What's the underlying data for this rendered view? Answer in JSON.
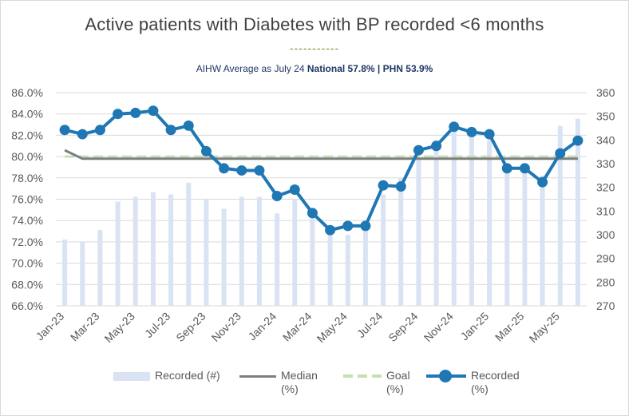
{
  "title": "Active patients with Diabetes with BP recorded <6 months",
  "title_dash": "-----------",
  "subtitle": {
    "prefix": "AIHW Average as July 24 ",
    "national": "National 57.8%",
    "separator": " | ",
    "phn": "PHN 53.9%"
  },
  "legend": {
    "recorded_count": "Recorded (#)",
    "median_line1": "Median",
    "median_line2": "(%)",
    "goal_line1": "Goal",
    "goal_line2": "(%)",
    "recorded_pct_line1": "Recorded",
    "recorded_pct_line2": "(%)"
  },
  "colors": {
    "bar": "#dae3f3",
    "median": "#7f7f7f",
    "goal": "#c5e0b4",
    "recorded": "#1f77b4",
    "grid": "#d9d9d9",
    "axis_text": "#595959"
  },
  "chart_data": {
    "type": "bar+line",
    "title": "Active patients with Diabetes with BP recorded <6 months",
    "x": [
      "Jan-23",
      "Feb-23",
      "Mar-23",
      "Apr-23",
      "May-23",
      "Jun-23",
      "Jul-23",
      "Aug-23",
      "Sep-23",
      "Oct-23",
      "Nov-23",
      "Dec-23",
      "Jan-24",
      "Feb-24",
      "Mar-24",
      "Apr-24",
      "May-24",
      "Jun-24",
      "Jul-24",
      "Aug-24",
      "Sep-24",
      "Oct-24",
      "Nov-24",
      "Dec-24",
      "Jan-25",
      "Feb-25",
      "Mar-25",
      "Apr-25",
      "May-25",
      "Jun-25"
    ],
    "x_tick_labels": [
      "Jan-23",
      "Mar-23",
      "May-23",
      "Jul-23",
      "Sep-23",
      "Nov-23",
      "Jan-24",
      "Mar-24",
      "May-24",
      "Jul-24",
      "Sep-24",
      "Nov-24",
      "Jan-25",
      "Mar-25",
      "May-25"
    ],
    "y_left": {
      "min": 66,
      "max": 86,
      "step": 2,
      "format": "percent1",
      "ticks": [
        "66.0%",
        "68.0%",
        "70.0%",
        "72.0%",
        "74.0%",
        "76.0%",
        "78.0%",
        "80.0%",
        "82.0%",
        "84.0%",
        "86.0%"
      ]
    },
    "y_right": {
      "min": 270,
      "max": 360,
      "step": 10,
      "ticks": [
        "270",
        "280",
        "290",
        "300",
        "310",
        "320",
        "330",
        "340",
        "350",
        "360"
      ]
    },
    "grid": true,
    "legend_position": "bottom",
    "series": [
      {
        "name": "Recorded (#)",
        "type": "bar",
        "axis": "right",
        "values": [
          298,
          297,
          302,
          314,
          316,
          318,
          317,
          322,
          315,
          311,
          316,
          316,
          309,
          315,
          307,
          300,
          300,
          305,
          317,
          324,
          332,
          340,
          346,
          344,
          340,
          330,
          328,
          325,
          346,
          349
        ]
      },
      {
        "name": "Median (%)",
        "type": "line",
        "axis": "left",
        "values": [
          80.6,
          79.8,
          79.8,
          79.8,
          79.8,
          79.8,
          79.8,
          79.8,
          79.8,
          79.8,
          79.8,
          79.8,
          79.8,
          79.8,
          79.8,
          79.8,
          79.8,
          79.8,
          79.8,
          79.8,
          79.8,
          79.8,
          79.8,
          79.8,
          79.8,
          79.8,
          79.8,
          79.8,
          79.8,
          79.8
        ]
      },
      {
        "name": "Goal (%)",
        "type": "line",
        "axis": "left",
        "values": [
          80.0,
          80.0,
          80.0,
          80.0,
          80.0,
          80.0,
          80.0,
          80.0,
          80.0,
          80.0,
          80.0,
          80.0,
          80.0,
          80.0,
          80.0,
          80.0,
          80.0,
          80.0,
          80.0,
          80.0,
          80.0,
          80.0,
          80.0,
          80.0,
          80.0,
          80.0,
          80.0,
          80.0,
          80.0,
          80.0
        ]
      },
      {
        "name": "Recorded (%)",
        "type": "line",
        "axis": "left",
        "values": [
          82.5,
          82.1,
          82.5,
          84.0,
          84.1,
          84.3,
          82.5,
          82.9,
          80.5,
          78.9,
          78.7,
          78.7,
          76.3,
          76.9,
          74.7,
          73.1,
          73.5,
          73.5,
          77.3,
          77.2,
          80.6,
          81.0,
          82.8,
          82.3,
          82.1,
          78.9,
          78.9,
          77.6,
          80.3,
          81.5
        ]
      }
    ]
  }
}
